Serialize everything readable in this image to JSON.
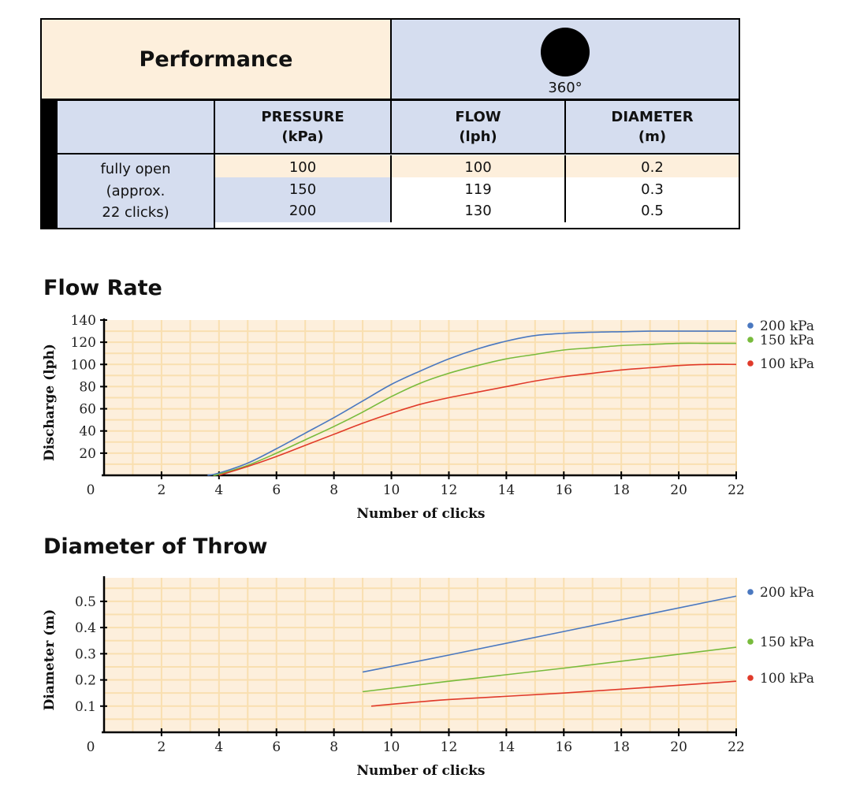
{
  "table": {
    "title": "Performance",
    "pattern_label": "360°",
    "headers": [
      {
        "line1": "PRESSURE",
        "line2": "(kPa)"
      },
      {
        "line1": "FLOW",
        "line2": "(lph)"
      },
      {
        "line1": "DIAMETER",
        "line2": "(m)"
      }
    ],
    "row_label": [
      "fully open",
      "(approx.",
      "22 clicks)"
    ],
    "rows": [
      {
        "pressure": "100",
        "flow": "100",
        "diameter": "0.2"
      },
      {
        "pressure": "150",
        "flow": "119",
        "diameter": "0.3"
      },
      {
        "pressure": "200",
        "flow": "130",
        "diameter": "0.5"
      }
    ]
  },
  "colors": {
    "peach": "#fdefdc",
    "blue_bg": "#d5ddef",
    "grid": "#f9dfb0",
    "plot_bg": "#fdefdc",
    "series_200": "#4a78c0",
    "series_150": "#78bb3c",
    "series_100": "#e03a2a"
  },
  "chart_data": [
    {
      "type": "line",
      "title": "Flow Rate",
      "xlabel": "Number of clicks",
      "ylabel": "Discharge (lph)",
      "xlim": [
        0,
        22
      ],
      "ylim": [
        0,
        140
      ],
      "x_ticks": [
        "0",
        "2",
        "4",
        "6",
        "8",
        "10",
        "12",
        "14",
        "16",
        "18",
        "20",
        "22"
      ],
      "y_ticks": [
        "20",
        "40",
        "60",
        "80",
        "100",
        "120",
        "140"
      ],
      "grid": true,
      "legend_position": "right",
      "series": [
        {
          "name": "200 kPa",
          "color": "#4a78c0",
          "x": [
            3.6,
            4,
            5,
            6,
            7,
            8,
            9,
            10,
            11,
            12,
            13,
            14,
            15,
            16,
            17,
            18,
            19,
            20,
            21,
            22
          ],
          "y": [
            0,
            2,
            11,
            24,
            38,
            52,
            67,
            82,
            94,
            105,
            114,
            121,
            126,
            128,
            129,
            129.5,
            130,
            130,
            130,
            130
          ]
        },
        {
          "name": "150 kPa",
          "color": "#78bb3c",
          "x": [
            3.8,
            4,
            5,
            6,
            7,
            8,
            9,
            10,
            11,
            12,
            13,
            14,
            15,
            16,
            17,
            18,
            19,
            20,
            21,
            22
          ],
          "y": [
            0,
            1,
            9,
            20,
            32,
            44,
            57,
            71,
            83,
            92,
            99,
            105,
            109,
            113,
            115,
            117,
            118,
            119,
            119,
            119
          ]
        },
        {
          "name": "100 kPa",
          "color": "#e03a2a",
          "x": [
            4,
            5,
            6,
            7,
            8,
            9,
            10,
            11,
            12,
            13,
            14,
            15,
            16,
            17,
            18,
            19,
            20,
            21,
            22
          ],
          "y": [
            0,
            8,
            17,
            27,
            37,
            47,
            56,
            64,
            70,
            75,
            80,
            85,
            89,
            92,
            95,
            97,
            99,
            100,
            100
          ]
        }
      ]
    },
    {
      "type": "line",
      "title": "Diameter of Throw",
      "xlabel": "Number of clicks",
      "ylabel": "Diameter (m)",
      "xlim": [
        0,
        22
      ],
      "ylim": [
        0,
        0.59
      ],
      "x_ticks": [
        "0",
        "2",
        "4",
        "6",
        "8",
        "10",
        "12",
        "14",
        "16",
        "18",
        "20",
        "22"
      ],
      "y_ticks": [
        "0.1",
        "0.2",
        "0.3",
        "0.4",
        "0.5"
      ],
      "grid": true,
      "legend_position": "right",
      "series": [
        {
          "name": "200 kPa",
          "color": "#4a78c0",
          "x": [
            9,
            12,
            16,
            22
          ],
          "y": [
            0.23,
            0.295,
            0.385,
            0.52
          ]
        },
        {
          "name": "150 kPa",
          "color": "#78bb3c",
          "x": [
            9,
            12,
            16,
            22
          ],
          "y": [
            0.155,
            0.195,
            0.245,
            0.325
          ]
        },
        {
          "name": "100 kPa",
          "color": "#e03a2a",
          "x": [
            9.3,
            12,
            16,
            22
          ],
          "y": [
            0.1,
            0.125,
            0.15,
            0.195
          ]
        }
      ]
    }
  ]
}
